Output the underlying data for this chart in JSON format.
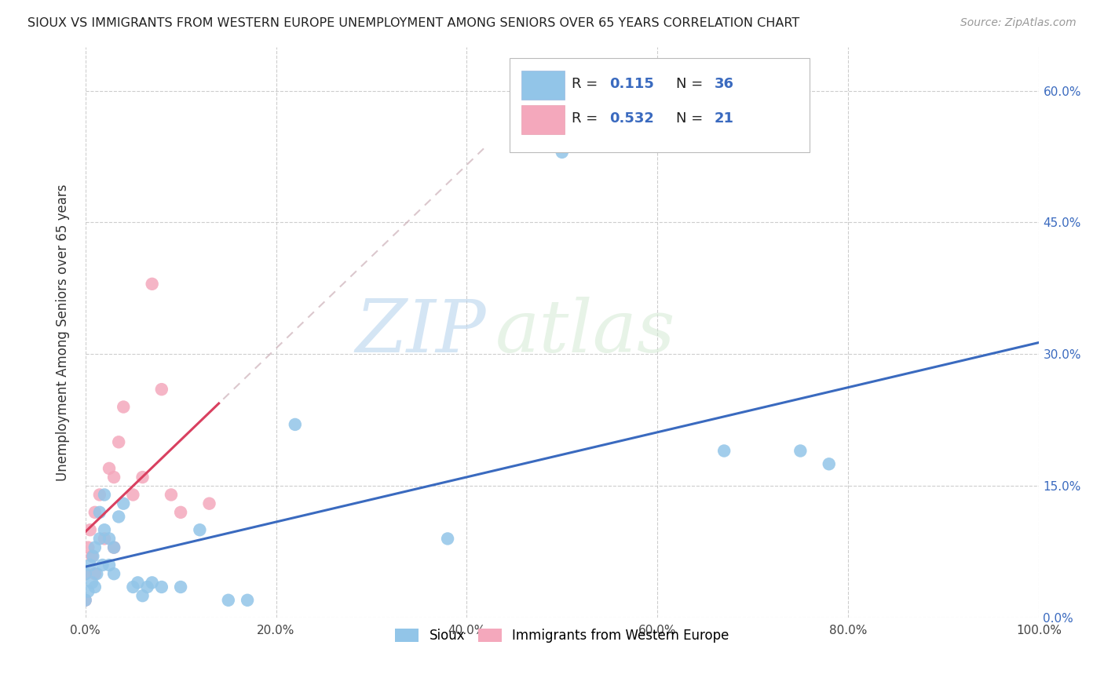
{
  "title": "SIOUX VS IMMIGRANTS FROM WESTERN EUROPE UNEMPLOYMENT AMONG SENIORS OVER 65 YEARS CORRELATION CHART",
  "source": "Source: ZipAtlas.com",
  "ylabel": "Unemployment Among Seniors over 65 years",
  "background_color": "#ffffff",
  "grid_color": "#c8c8c8",
  "xlim": [
    0.0,
    1.0
  ],
  "ylim": [
    0.0,
    0.65
  ],
  "xticks": [
    0.0,
    0.2,
    0.4,
    0.6,
    0.8,
    1.0
  ],
  "xtick_labels": [
    "0.0%",
    "20.0%",
    "40.0%",
    "60.0%",
    "80.0%",
    "100.0%"
  ],
  "yticks": [
    0.0,
    0.15,
    0.3,
    0.45,
    0.6
  ],
  "ytick_labels": [
    "0.0%",
    "15.0%",
    "30.0%",
    "45.0%",
    "60.0%"
  ],
  "sioux_color": "#92c5e8",
  "immigrants_color": "#f4a8bc",
  "sioux_line_color": "#3a6abf",
  "immigrants_line_color": "#d94060",
  "immigrants_dash_color": "#ccb0b8",
  "R_sioux": 0.115,
  "N_sioux": 36,
  "R_immigrants": 0.532,
  "N_immigrants": 21,
  "sioux_x": [
    0.0,
    0.0,
    0.003,
    0.005,
    0.007,
    0.008,
    0.01,
    0.01,
    0.012,
    0.015,
    0.015,
    0.018,
    0.02,
    0.02,
    0.025,
    0.025,
    0.03,
    0.03,
    0.035,
    0.04,
    0.05,
    0.055,
    0.06,
    0.065,
    0.07,
    0.08,
    0.1,
    0.12,
    0.15,
    0.17,
    0.22,
    0.38,
    0.5,
    0.67,
    0.75,
    0.78
  ],
  "sioux_y": [
    0.02,
    0.05,
    0.03,
    0.06,
    0.04,
    0.07,
    0.035,
    0.08,
    0.05,
    0.09,
    0.12,
    0.06,
    0.1,
    0.14,
    0.06,
    0.09,
    0.05,
    0.08,
    0.115,
    0.13,
    0.035,
    0.04,
    0.025,
    0.035,
    0.04,
    0.035,
    0.035,
    0.1,
    0.02,
    0.02,
    0.22,
    0.09,
    0.53,
    0.19,
    0.19,
    0.175
  ],
  "immigrants_x": [
    0.0,
    0.0,
    0.003,
    0.005,
    0.007,
    0.01,
    0.01,
    0.015,
    0.02,
    0.025,
    0.03,
    0.03,
    0.035,
    0.04,
    0.05,
    0.06,
    0.07,
    0.08,
    0.09,
    0.1,
    0.13
  ],
  "immigrants_y": [
    0.02,
    0.05,
    0.08,
    0.1,
    0.07,
    0.05,
    0.12,
    0.14,
    0.09,
    0.17,
    0.08,
    0.16,
    0.2,
    0.24,
    0.14,
    0.16,
    0.38,
    0.26,
    0.14,
    0.12,
    0.13
  ]
}
